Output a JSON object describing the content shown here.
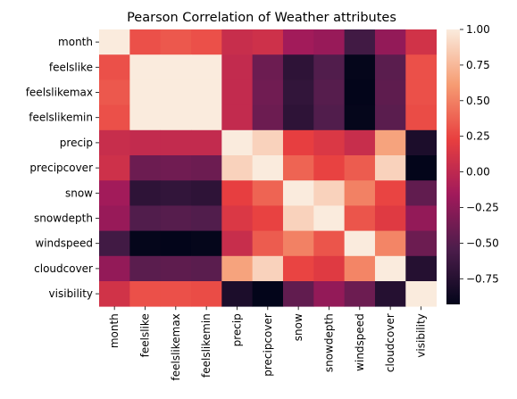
{
  "chart_data": {
    "type": "heatmap",
    "title": "Pearson Correlation of Weather attributes",
    "xlabel": "",
    "ylabel": "",
    "rows": [
      "month",
      "feelslike",
      "feelslikemax",
      "feelslikemin",
      "precip",
      "precipcover",
      "snow",
      "snowdepth",
      "windspeed",
      "cloudcover",
      "visibility"
    ],
    "columns": [
      "month",
      "feelslike",
      "feelslikemax",
      "feelslikemin",
      "precip",
      "precipcover",
      "snow",
      "snowdepth",
      "windspeed",
      "cloudcover",
      "visibility"
    ],
    "values": [
      [
        1.0,
        0.3,
        0.33,
        0.3,
        0.05,
        0.08,
        -0.15,
        -0.2,
        -0.6,
        -0.22,
        0.1
      ],
      [
        0.3,
        1.0,
        1.0,
        1.0,
        0.02,
        -0.4,
        -0.7,
        -0.52,
        -0.92,
        -0.48,
        0.3
      ],
      [
        0.33,
        1.0,
        1.0,
        1.0,
        0.02,
        -0.38,
        -0.68,
        -0.5,
        -0.93,
        -0.46,
        0.3
      ],
      [
        0.3,
        1.0,
        1.0,
        1.0,
        0.02,
        -0.4,
        -0.7,
        -0.52,
        -0.92,
        -0.48,
        0.28
      ],
      [
        0.05,
        0.02,
        0.02,
        0.02,
        1.0,
        0.88,
        0.22,
        0.15,
        0.05,
        0.65,
        -0.8
      ],
      [
        0.08,
        -0.4,
        -0.38,
        -0.4,
        0.88,
        1.0,
        0.38,
        0.24,
        0.35,
        0.88,
        -0.93
      ],
      [
        -0.15,
        -0.7,
        -0.68,
        -0.7,
        0.22,
        0.38,
        1.0,
        0.88,
        0.5,
        0.25,
        -0.45
      ],
      [
        -0.2,
        -0.52,
        -0.5,
        -0.52,
        0.15,
        0.24,
        0.88,
        1.0,
        0.32,
        0.18,
        -0.22
      ],
      [
        -0.6,
        -0.92,
        -0.93,
        -0.92,
        0.05,
        0.35,
        0.5,
        0.32,
        1.0,
        0.52,
        -0.4
      ],
      [
        -0.22,
        -0.48,
        -0.46,
        -0.48,
        0.65,
        0.88,
        0.25,
        0.18,
        0.52,
        1.0,
        -0.75
      ],
      [
        0.1,
        0.3,
        0.3,
        0.28,
        -0.8,
        -0.93,
        -0.45,
        -0.22,
        -0.4,
        -0.75,
        1.0
      ]
    ],
    "colorbar": {
      "min": -0.93,
      "max": 1.0,
      "ticks": [
        1.0,
        0.75,
        0.5,
        0.25,
        0.0,
        -0.25,
        -0.5,
        -0.75
      ],
      "tick_labels": [
        "1.00",
        "0.75",
        "0.50",
        "0.25",
        "0.00",
        "−0.25",
        "−0.50",
        "−0.75"
      ],
      "colormap": "rocket",
      "colors": [
        "#03051a",
        "#4c1d4b",
        "#a11a5b",
        "#e83f3f",
        "#f69c73",
        "#faebdd"
      ]
    },
    "grid": false
  }
}
